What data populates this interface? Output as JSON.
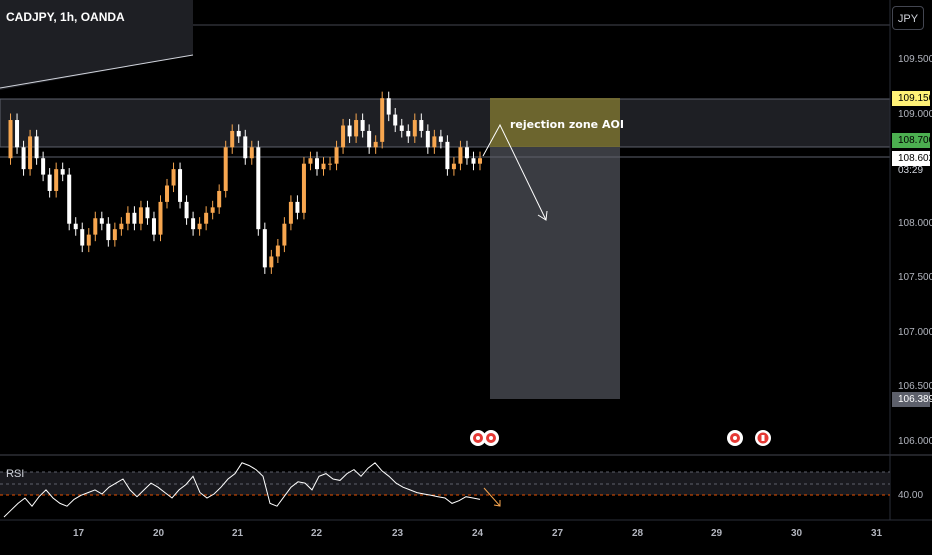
{
  "header": {
    "symbol_title": "CADJPY, 1h, OANDA",
    "currency": "JPY"
  },
  "price_axis": {
    "ticks": [
      {
        "value": 109.5,
        "label": "109.500"
      },
      {
        "value": 109.0,
        "label": "109.000"
      },
      {
        "value": 108.0,
        "label": "108.000"
      },
      {
        "value": 107.5,
        "label": "107.500"
      },
      {
        "value": 107.0,
        "label": "107.000"
      },
      {
        "value": 106.5,
        "label": "106.500"
      },
      {
        "value": 106.0,
        "label": "106.000"
      }
    ],
    "tags": {
      "zone_top": {
        "label": "109.150",
        "value": 109.15,
        "bg": "#fff176",
        "fg": "#000000"
      },
      "zone_bottom": {
        "label": "108.700",
        "value": 108.7,
        "bg": "#4caf50",
        "fg": "#000000"
      },
      "last_price": {
        "label": "108.602",
        "value": 108.602,
        "bg": "#ffffff",
        "fg": "#000000"
      },
      "target": {
        "label": "106.389",
        "value": 106.389,
        "bg": "#5d606b",
        "fg": "#ffffff"
      }
    },
    "countdown": "03:29"
  },
  "time_axis": {
    "labels": [
      "17",
      "20",
      "21",
      "22",
      "23",
      "24",
      "27",
      "28",
      "29",
      "30",
      "31"
    ]
  },
  "annotation": {
    "text": "rejection zone AOI"
  },
  "rsi": {
    "label": "RSI",
    "level_label": "40.00"
  },
  "colors": {
    "background": "#000000",
    "bull_candle": "#f7a64f",
    "bear_candle": "#ffffff",
    "zone_fill": "#7a7230",
    "target_box": "#3a3c42",
    "rsi_line": "#ffffff",
    "rsi_band": "#2a2a30"
  },
  "event_icons": [
    "flag-icon",
    "flag-icon",
    "flag-icon",
    "canada-flag-icon"
  ],
  "chart_data": {
    "type": "candlestick",
    "title": "CADJPY, 1h, OANDA",
    "ylim": [
      106.0,
      109.7
    ],
    "price_series": [
      108.6,
      108.95,
      108.7,
      108.5,
      108.8,
      108.6,
      108.45,
      108.3,
      108.5,
      108.45,
      108.0,
      107.95,
      107.8,
      107.9,
      108.05,
      108.0,
      107.85,
      107.95,
      108.0,
      108.1,
      108.0,
      108.15,
      108.05,
      107.9,
      108.2,
      108.35,
      108.5,
      108.2,
      108.05,
      107.95,
      108.0,
      108.1,
      108.15,
      108.3,
      108.7,
      108.85,
      108.8,
      108.6,
      108.7,
      107.95,
      107.6,
      107.7,
      107.8,
      108.0,
      108.2,
      108.1,
      108.55,
      108.6,
      108.5,
      108.55,
      108.55,
      108.7,
      108.9,
      108.8,
      108.95,
      108.85,
      108.7,
      108.75,
      109.15,
      109.0,
      108.9,
      108.85,
      108.8,
      108.95,
      108.85,
      108.7,
      108.8,
      108.75,
      108.5,
      108.55,
      108.7,
      108.6,
      108.55,
      108.6
    ],
    "rsi_series": [
      30,
      35,
      40,
      44,
      38,
      45,
      50,
      44,
      40,
      38,
      43,
      46,
      48,
      50,
      47,
      52,
      55,
      58,
      50,
      45,
      50,
      55,
      52,
      48,
      44,
      50,
      54,
      60,
      48,
      44,
      47,
      52,
      58,
      62,
      70,
      68,
      65,
      60,
      40,
      38,
      45,
      52,
      56,
      55,
      50,
      60,
      62,
      58,
      57,
      62,
      65,
      60,
      66,
      70,
      64,
      60,
      55,
      52,
      50,
      48,
      47,
      46,
      45,
      44,
      40,
      42,
      45,
      44,
      43
    ]
  }
}
